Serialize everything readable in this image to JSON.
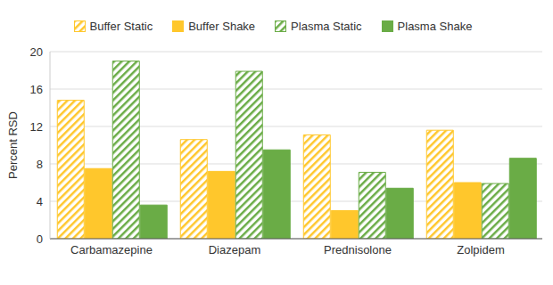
{
  "chart_data": {
    "type": "bar",
    "categories": [
      "Carbamazepine",
      "Diazepam",
      "Prednisolone",
      "Zolpidem"
    ],
    "series": [
      {
        "name": "Buffer Static",
        "color": "#ffc72c",
        "values": [
          14.8,
          10.6,
          11.1,
          11.6
        ]
      },
      {
        "name": "Buffer Shake",
        "color": "#ffc72c",
        "values": [
          7.5,
          7.2,
          3.0,
          6.0
        ]
      },
      {
        "name": "Plasma Static",
        "color": "#6aac46",
        "values": [
          19.0,
          17.9,
          7.1,
          5.9
        ]
      },
      {
        "name": "Plasma Shake",
        "color": "#6aac46",
        "values": [
          3.6,
          9.5,
          5.4,
          8.6
        ]
      }
    ],
    "ylabel": "Percent RSD",
    "ylim": [
      0,
      20
    ],
    "yticks": [
      0,
      4,
      8,
      12,
      16,
      20
    ],
    "grid": true,
    "legend": "top"
  }
}
